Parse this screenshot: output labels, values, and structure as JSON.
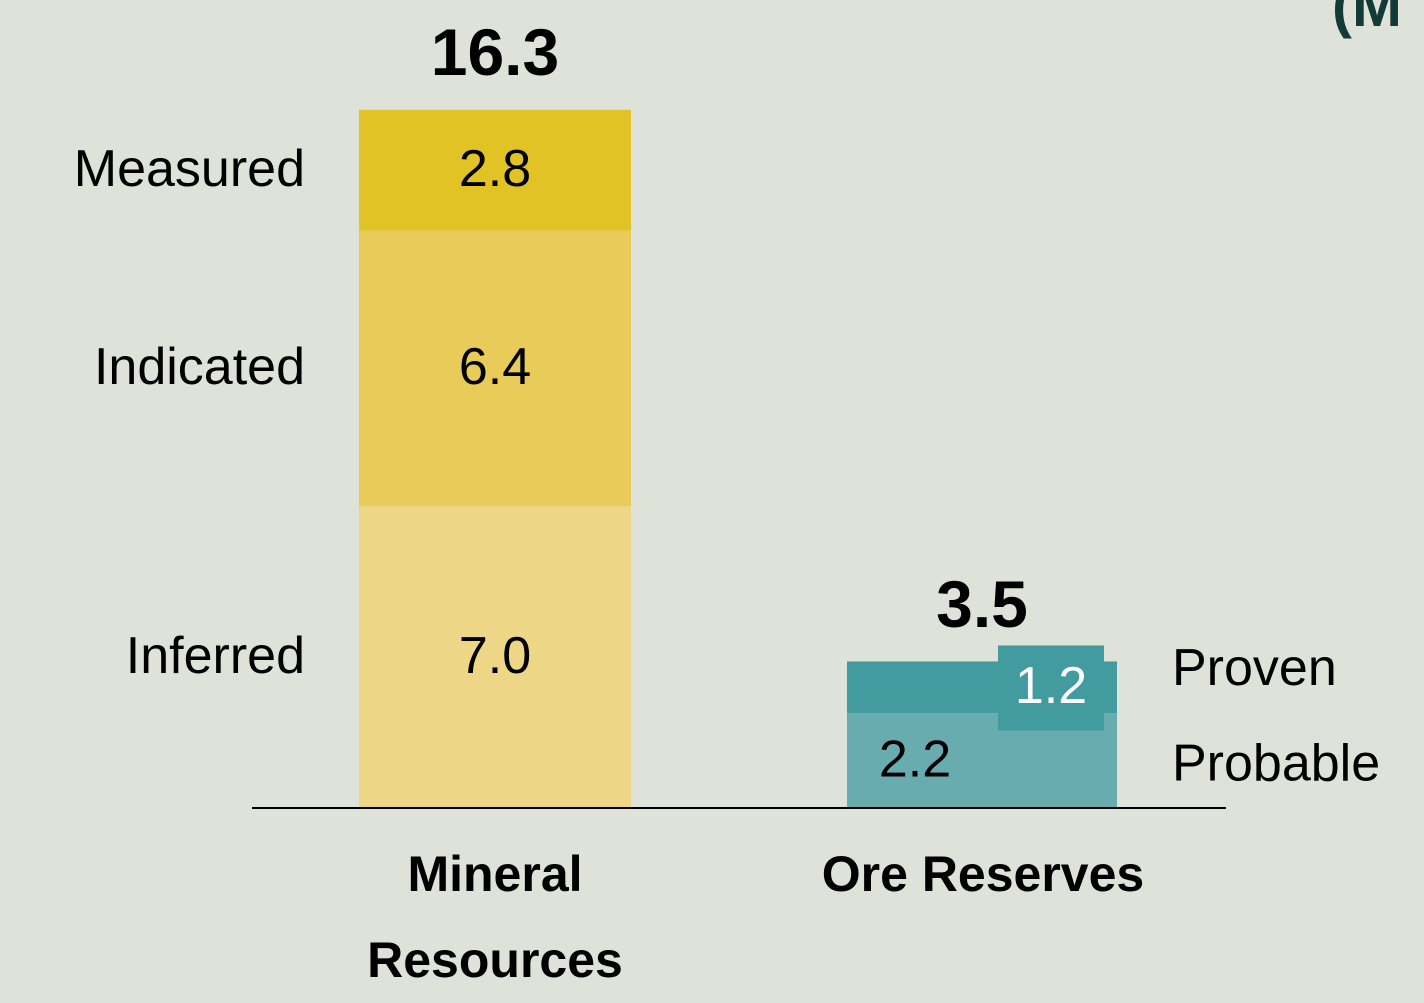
{
  "chart_data": {
    "type": "stacked-bar",
    "corner_text": "(M",
    "categories": [
      "Mineral Resources",
      "Ore Reserves"
    ],
    "series": [
      {
        "name": "Inferred",
        "color": "#edd787",
        "values": [
          7.0,
          null
        ],
        "value_labels": [
          "7.0",
          null
        ]
      },
      {
        "name": "Indicated",
        "color": "#e8cb58",
        "values": [
          6.4,
          null
        ]
      },
      {
        "name": "Measured",
        "color": "#e2c325",
        "values": [
          2.8,
          null
        ]
      },
      {
        "name": "Probable",
        "color": "#68acb0",
        "values": [
          null,
          2.2
        ]
      },
      {
        "name": "Proven",
        "color": "#429b9e",
        "values": [
          null,
          1.2
        ]
      }
    ],
    "totals": [
      16.3,
      3.5
    ],
    "ylim": [
      0,
      17
    ]
  }
}
